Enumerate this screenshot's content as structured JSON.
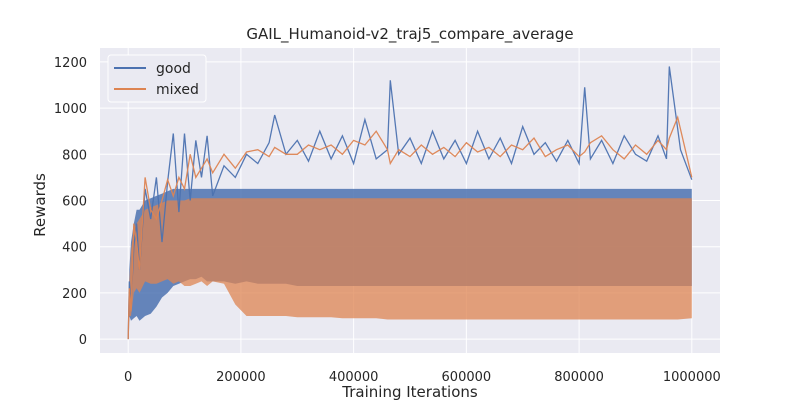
{
  "chart_data": {
    "type": "line",
    "title": "GAIL_Humanoid-v2_traj5_compare_average",
    "xlabel": "Training Iterations",
    "ylabel": "Rewards",
    "xlim": [
      -50000,
      1050000
    ],
    "ylim": [
      -60,
      1260
    ],
    "x_ticks": [
      0,
      200000,
      400000,
      600000,
      800000,
      1000000
    ],
    "x_tick_labels": [
      "0",
      "200000",
      "400000",
      "600000",
      "800000",
      "1000000"
    ],
    "y_ticks": [
      0,
      200,
      400,
      600,
      800,
      1000,
      1200
    ],
    "y_tick_labels": [
      "0",
      "200",
      "400",
      "600",
      "800",
      "1000",
      "1200"
    ],
    "grid": true,
    "background": "#eaeaf2",
    "grid_color": "#ffffff",
    "legend_position": "top-left",
    "series": [
      {
        "name": "good",
        "color": "#4c72b0",
        "x": [
          0,
          2000,
          5000,
          10000,
          15000,
          20000,
          30000,
          40000,
          50000,
          60000,
          70000,
          80000,
          90000,
          100000,
          110000,
          120000,
          130000,
          140000,
          150000,
          170000,
          190000,
          210000,
          230000,
          250000,
          260000,
          280000,
          300000,
          320000,
          340000,
          360000,
          380000,
          400000,
          420000,
          440000,
          460000,
          465000,
          480000,
          500000,
          520000,
          540000,
          560000,
          580000,
          600000,
          620000,
          640000,
          660000,
          680000,
          700000,
          720000,
          740000,
          760000,
          780000,
          800000,
          810000,
          820000,
          840000,
          860000,
          880000,
          900000,
          920000,
          940000,
          955000,
          960000,
          980000,
          1000000
        ],
        "values": [
          0,
          250,
          150,
          400,
          500,
          300,
          650,
          520,
          700,
          420,
          680,
          890,
          550,
          890,
          600,
          860,
          700,
          880,
          620,
          750,
          700,
          800,
          760,
          850,
          970,
          800,
          860,
          770,
          900,
          780,
          880,
          760,
          950,
          780,
          820,
          1120,
          800,
          870,
          760,
          900,
          780,
          860,
          760,
          900,
          780,
          870,
          760,
          920,
          800,
          850,
          770,
          860,
          760,
          1090,
          780,
          860,
          760,
          880,
          800,
          770,
          880,
          780,
          1180,
          820,
          690
        ],
        "lower": [
          0,
          100,
          80,
          90,
          100,
          80,
          100,
          110,
          140,
          180,
          200,
          230,
          240,
          250,
          260,
          260,
          270,
          250,
          250,
          250,
          240,
          250,
          240,
          240,
          240,
          240,
          230,
          230,
          230,
          230,
          230,
          230,
          230,
          230,
          230,
          230,
          230,
          230,
          230,
          230,
          230,
          230,
          230,
          230,
          230,
          230,
          230,
          230,
          230,
          230,
          230,
          230,
          230,
          230,
          230,
          230,
          230,
          230,
          230,
          230,
          230,
          230,
          230,
          230,
          230
        ],
        "upper": [
          0,
          300,
          420,
          500,
          560,
          560,
          600,
          610,
          620,
          630,
          640,
          650,
          650,
          650,
          650,
          650,
          650,
          650,
          650,
          650,
          650,
          650,
          650,
          650,
          650,
          650,
          650,
          650,
          650,
          650,
          650,
          650,
          650,
          650,
          650,
          650,
          650,
          650,
          650,
          650,
          650,
          650,
          650,
          650,
          650,
          650,
          650,
          650,
          650,
          650,
          650,
          650,
          650,
          650,
          650,
          650,
          650,
          650,
          650,
          650,
          650,
          650,
          650,
          650,
          650
        ]
      },
      {
        "name": "mixed",
        "color": "#dd8452",
        "x": [
          0,
          2000,
          5000,
          10000,
          15000,
          20000,
          30000,
          40000,
          50000,
          60000,
          70000,
          80000,
          90000,
          100000,
          110000,
          120000,
          130000,
          140000,
          150000,
          170000,
          190000,
          210000,
          230000,
          250000,
          260000,
          280000,
          300000,
          320000,
          340000,
          360000,
          380000,
          400000,
          420000,
          440000,
          460000,
          465000,
          480000,
          500000,
          520000,
          540000,
          560000,
          580000,
          600000,
          620000,
          640000,
          660000,
          680000,
          700000,
          720000,
          740000,
          760000,
          780000,
          800000,
          810000,
          820000,
          840000,
          860000,
          880000,
          900000,
          920000,
          940000,
          955000,
          960000,
          975000,
          1000000
        ],
        "values": [
          0,
          220,
          120,
          500,
          420,
          300,
          700,
          560,
          520,
          600,
          690,
          620,
          700,
          650,
          800,
          700,
          740,
          780,
          720,
          800,
          740,
          810,
          820,
          790,
          830,
          800,
          800,
          840,
          820,
          840,
          800,
          860,
          840,
          900,
          820,
          760,
          820,
          790,
          840,
          800,
          830,
          790,
          850,
          810,
          830,
          790,
          840,
          820,
          870,
          790,
          820,
          840,
          790,
          810,
          850,
          880,
          820,
          780,
          840,
          800,
          860,
          820,
          870,
          960,
          700
        ],
        "lower": [
          0,
          100,
          100,
          200,
          220,
          200,
          250,
          240,
          240,
          250,
          260,
          240,
          250,
          230,
          230,
          240,
          250,
          230,
          250,
          240,
          150,
          100,
          100,
          100,
          100,
          100,
          95,
          95,
          95,
          95,
          90,
          90,
          90,
          90,
          85,
          85,
          85,
          85,
          85,
          85,
          85,
          85,
          85,
          85,
          85,
          85,
          85,
          85,
          85,
          85,
          85,
          85,
          85,
          85,
          85,
          85,
          85,
          85,
          85,
          85,
          85,
          85,
          85,
          85,
          90
        ],
        "upper": [
          0,
          250,
          380,
          480,
          500,
          520,
          560,
          570,
          580,
          590,
          600,
          600,
          600,
          600,
          610,
          610,
          610,
          610,
          610,
          610,
          610,
          610,
          610,
          610,
          610,
          610,
          610,
          610,
          610,
          610,
          610,
          610,
          610,
          610,
          610,
          610,
          610,
          610,
          610,
          610,
          610,
          610,
          610,
          610,
          610,
          610,
          610,
          610,
          610,
          610,
          610,
          610,
          610,
          610,
          610,
          610,
          610,
          610,
          610,
          610,
          610,
          610,
          610,
          610,
          610
        ]
      }
    ]
  }
}
